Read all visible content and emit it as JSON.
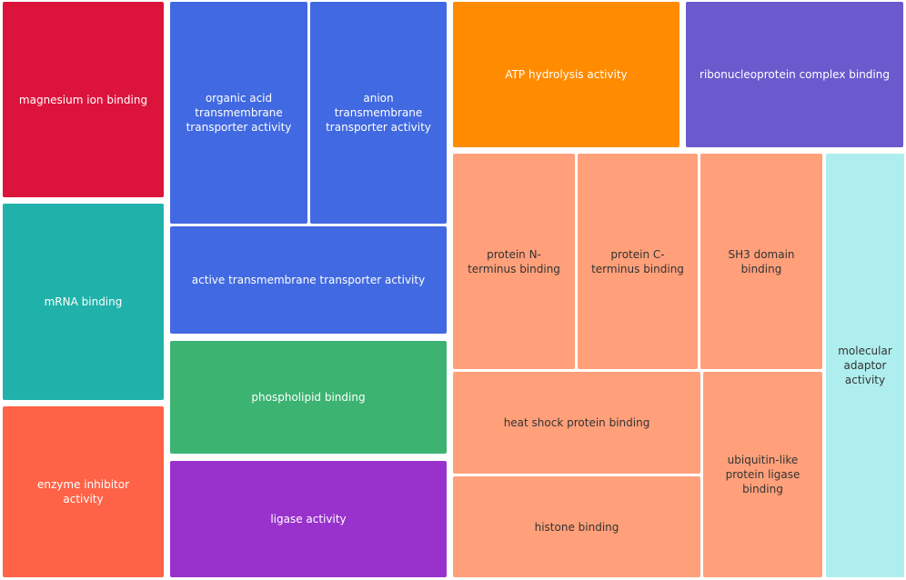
{
  "chart_data": {
    "type": "treemap",
    "tiles": [
      {
        "label": "magnesium ion binding",
        "color": "#dc143c",
        "text_color": "#ffffff"
      },
      {
        "label": "mRNA binding",
        "color": "#20b2aa",
        "text_color": "#ffffff"
      },
      {
        "label": "enzyme inhibitor activity",
        "color": "#ff6347",
        "text_color": "#ffffff"
      },
      {
        "label": "organic acid transmembrane transporter activity",
        "color": "#4169e1",
        "text_color": "#ffffff"
      },
      {
        "label": "anion transmembrane transporter activity",
        "color": "#4169e1",
        "text_color": "#ffffff"
      },
      {
        "label": "active transmembrane transporter activity",
        "color": "#4169e1",
        "text_color": "#ffffff"
      },
      {
        "label": "phospholipid binding",
        "color": "#3cb371",
        "text_color": "#ffffff"
      },
      {
        "label": "ligase activity",
        "color": "#9932cc",
        "text_color": "#ffffff"
      },
      {
        "label": "ATP hydrolysis activity",
        "color": "#ff8c00",
        "text_color": "#ffffff"
      },
      {
        "label": "ribonucleoprotein complex binding",
        "color": "#6a5acd",
        "text_color": "#ffffff"
      },
      {
        "label": "protein N-terminus binding",
        "color": "#ffa07a",
        "text_color": "#333333"
      },
      {
        "label": "protein C-terminus binding",
        "color": "#ffa07a",
        "text_color": "#333333"
      },
      {
        "label": "SH3 domain binding",
        "color": "#ffa07a",
        "text_color": "#333333"
      },
      {
        "label": "heat shock protein binding",
        "color": "#ffa07a",
        "text_color": "#333333"
      },
      {
        "label": "histone binding",
        "color": "#ffa07a",
        "text_color": "#333333"
      },
      {
        "label": "ubiquitin-like protein ligase binding",
        "color": "#ffa07a",
        "text_color": "#333333"
      },
      {
        "label": "molecular adaptor activity",
        "color": "#afeeee",
        "text_color": "#333333"
      }
    ]
  }
}
